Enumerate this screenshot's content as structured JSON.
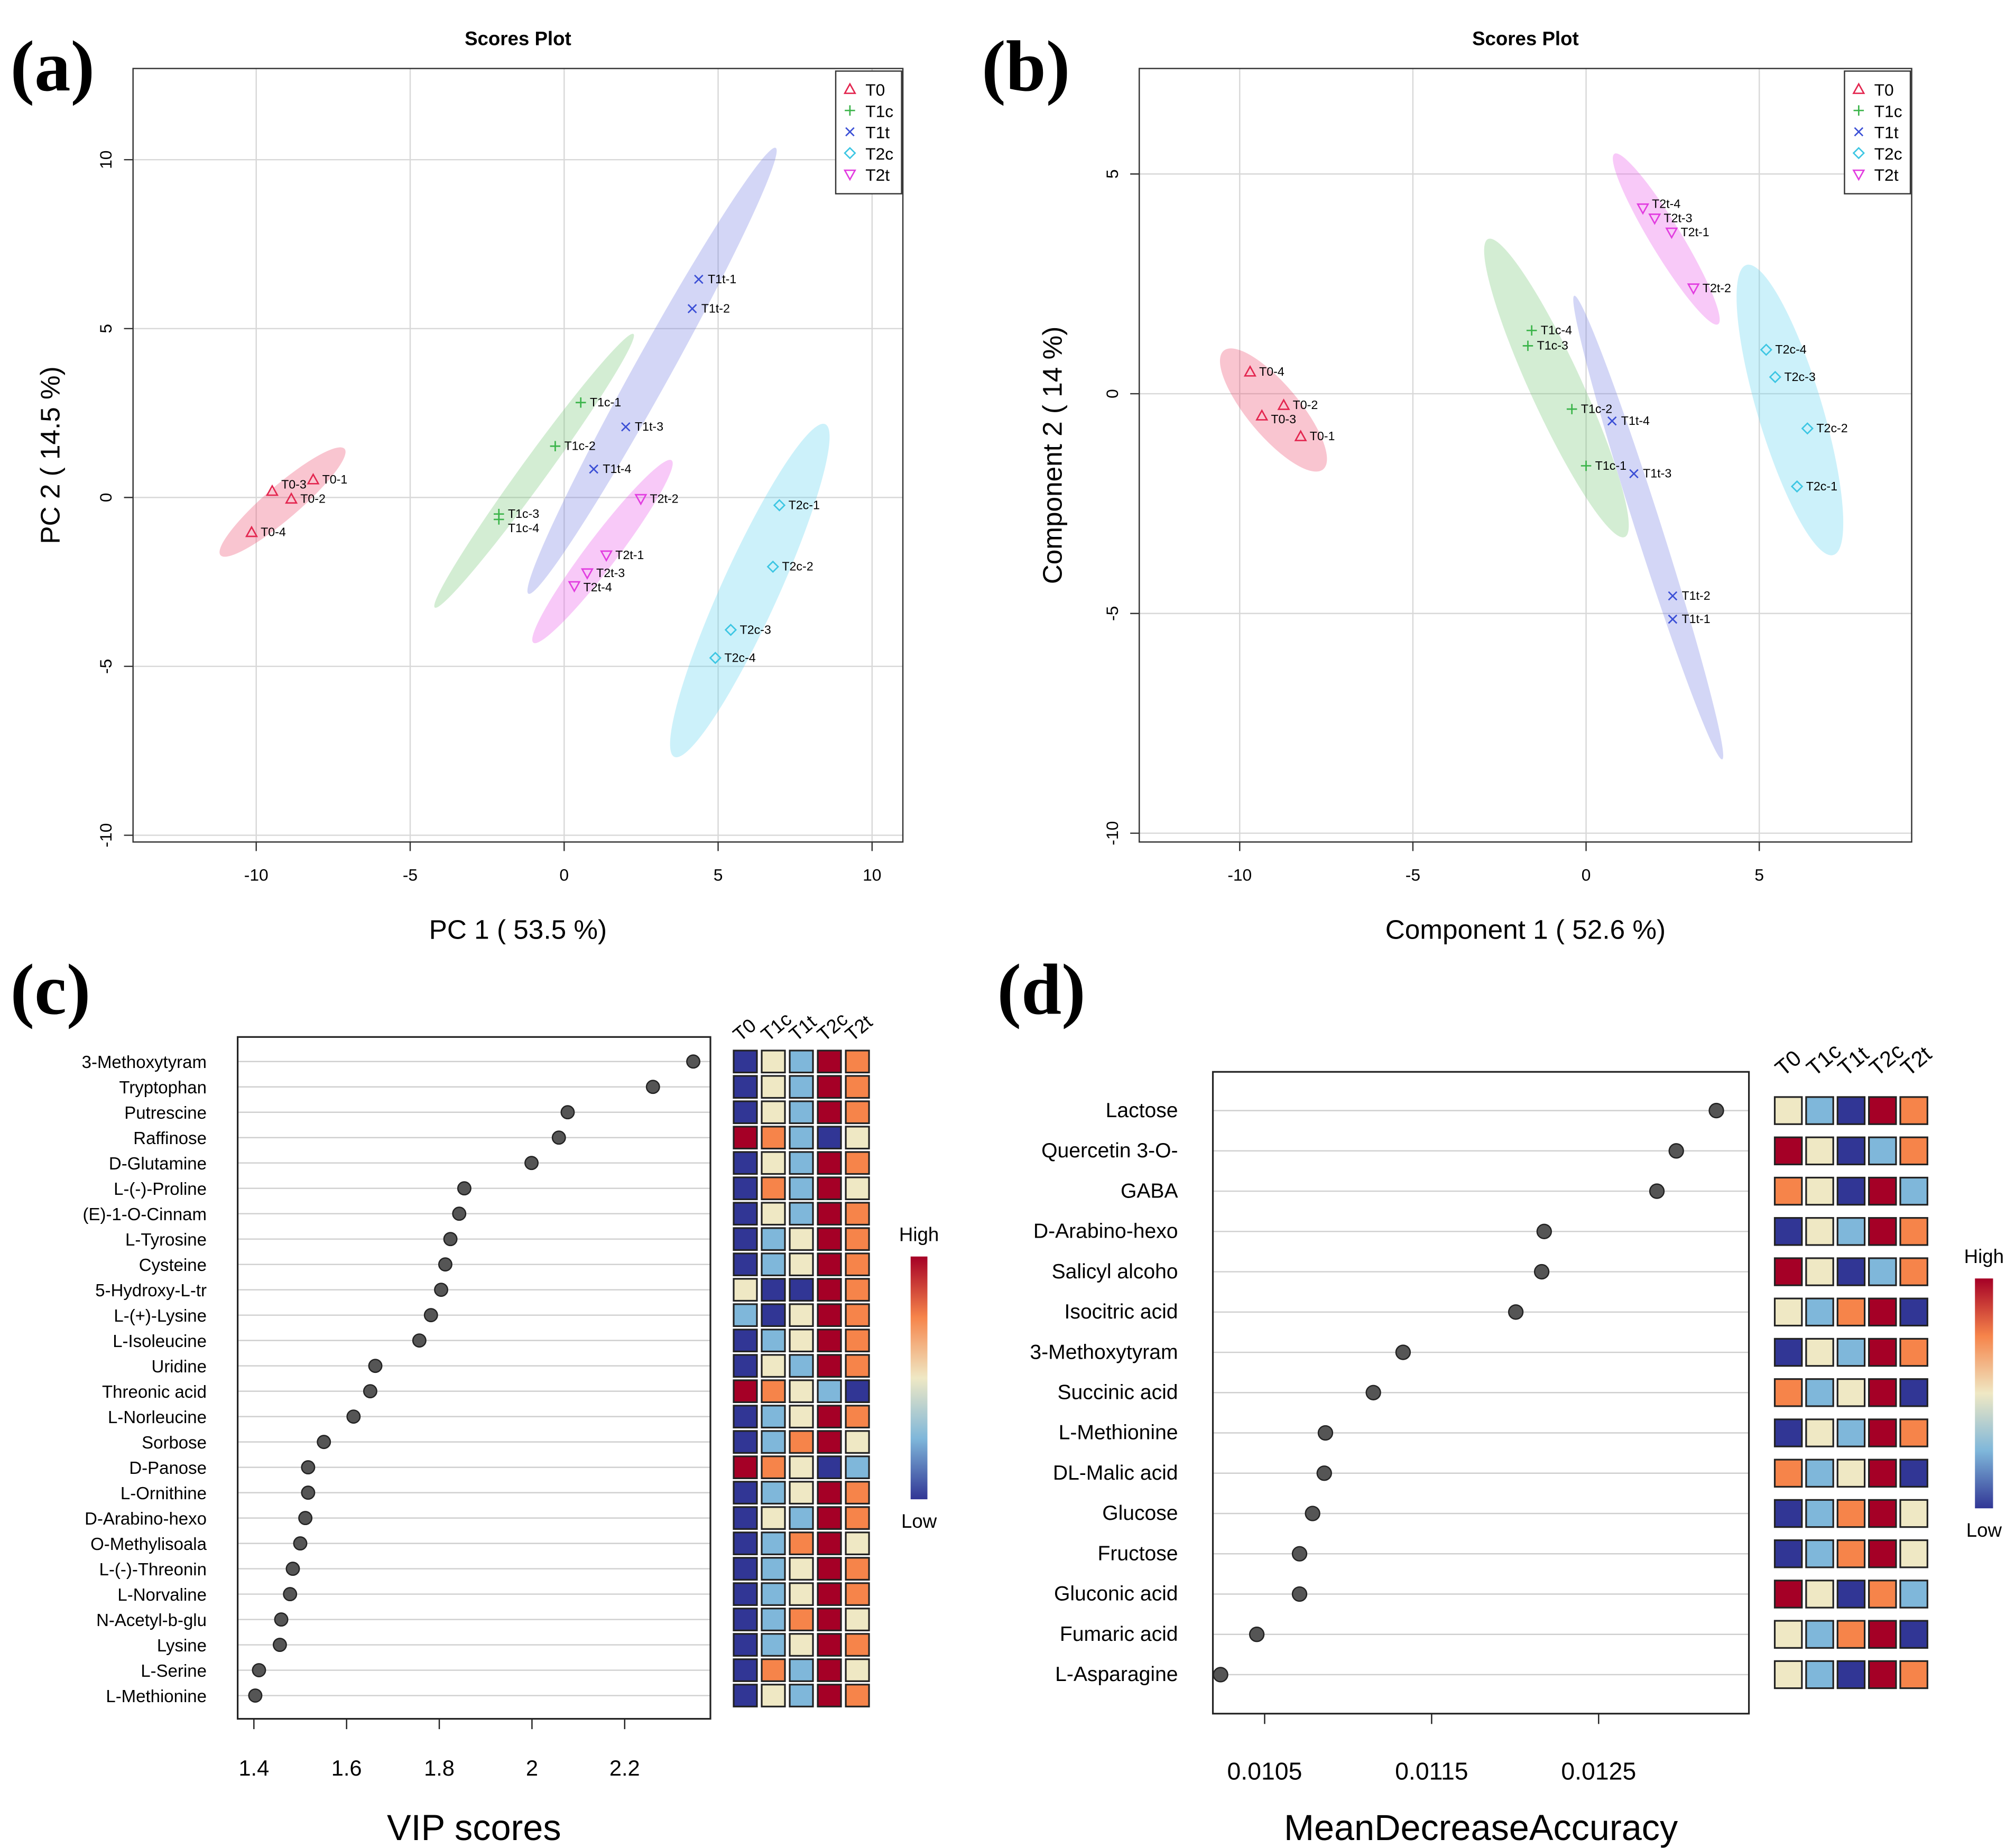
{
  "colors": {
    "T0": "#e3264f",
    "T1c": "#3bb44a",
    "T1t": "#3b4fd6",
    "T2c": "#3cc6e3",
    "T2t": "#e23de0",
    "heat": [
      "#313695",
      "#7fb7da",
      "#efe8c4",
      "#f6844a",
      "#a50026"
    ]
  },
  "chart_data": [
    {
      "panel": "(a)",
      "type": "scatter",
      "title": "Scores Plot",
      "xlabel": "PC 1 ( 53.5 %)",
      "ylabel": "PC 2 ( 14.5 %)",
      "xlim": [
        -14,
        11
      ],
      "ylim": [
        -10.2,
        12.7
      ],
      "xticks": [
        -10,
        -5,
        0,
        5,
        10
      ],
      "yticks": [
        -10,
        -5,
        0,
        5,
        10
      ],
      "grid": true,
      "legend": "top-right",
      "groups": [
        "T0",
        "T1c",
        "T1t",
        "T2c",
        "T2t"
      ],
      "points": [
        {
          "label": "T0-1",
          "group": "T0",
          "x": -8.15,
          "y": 0.53
        },
        {
          "label": "T0-2",
          "group": "T0",
          "x": -8.86,
          "y": -0.04
        },
        {
          "label": "T0-3",
          "group": "T0",
          "x": -9.48,
          "y": 0.19
        },
        {
          "label": "T0-4",
          "group": "T0",
          "x": -10.15,
          "y": -1.03
        },
        {
          "label": "T1c-1",
          "group": "T1c",
          "x": 0.54,
          "y": 2.81
        },
        {
          "label": "T1c-2",
          "group": "T1c",
          "x": -0.29,
          "y": 1.52
        },
        {
          "label": "T1c-3",
          "group": "T1c",
          "x": -2.12,
          "y": -0.49
        },
        {
          "label": "T1c-4",
          "group": "T1c",
          "x": -2.12,
          "y": -0.65
        },
        {
          "label": "T1t-1",
          "group": "T1t",
          "x": 4.37,
          "y": 6.46
        },
        {
          "label": "T1t-2",
          "group": "T1t",
          "x": 4.16,
          "y": 5.59
        },
        {
          "label": "T1t-3",
          "group": "T1t",
          "x": 2.0,
          "y": 2.09
        },
        {
          "label": "T1t-4",
          "group": "T1t",
          "x": 0.96,
          "y": 0.84
        },
        {
          "label": "T2c-1",
          "group": "T2c",
          "x": 6.99,
          "y": -0.23
        },
        {
          "label": "T2c-2",
          "group": "T2c",
          "x": 6.78,
          "y": -2.05
        },
        {
          "label": "T2c-3",
          "group": "T2c",
          "x": 5.41,
          "y": -3.92
        },
        {
          "label": "T2c-4",
          "group": "T2c",
          "x": 4.91,
          "y": -4.75
        },
        {
          "label": "T2t-1",
          "group": "T2t",
          "x": 1.37,
          "y": -1.71
        },
        {
          "label": "T2t-2",
          "group": "T2t",
          "x": 2.49,
          "y": -0.04
        },
        {
          "label": "T2t-3",
          "group": "T2t",
          "x": 0.75,
          "y": -2.24
        },
        {
          "label": "T2t-4",
          "group": "T2t",
          "x": 0.33,
          "y": -2.62
        }
      ],
      "ellipses": [
        {
          "group": "T0",
          "from": [
            -11.16,
            -1.71
          ],
          "to": [
            -7.13,
            1.44
          ]
        },
        {
          "group": "T1c",
          "from": [
            -4.2,
            -3.26
          ],
          "to": [
            2.25,
            4.84
          ]
        },
        {
          "group": "T1t",
          "from": [
            -1.16,
            -2.85
          ],
          "to": [
            6.87,
            10.35
          ]
        },
        {
          "group": "T2t",
          "from": [
            -1.0,
            -4.3
          ],
          "to": [
            3.49,
            1.1
          ]
        },
        {
          "group": "T2c",
          "from": [
            3.58,
            -7.68
          ],
          "to": [
            8.48,
            2.17
          ]
        }
      ]
    },
    {
      "panel": "(b)",
      "type": "scatter",
      "title": "Scores Plot",
      "xlabel": "Component 1 ( 52.6 %)",
      "ylabel": "Component 2 ( 14 %)",
      "xlim": [
        -12.9,
        9.4
      ],
      "ylim": [
        -10.2,
        7.4
      ],
      "xticks": [
        -10,
        -5,
        0,
        5
      ],
      "yticks": [
        -10,
        -5,
        0,
        5
      ],
      "grid": true,
      "legend": "top-right",
      "groups": [
        "T0",
        "T1c",
        "T1t",
        "T2c",
        "T2t"
      ],
      "points": [
        {
          "label": "T0-1",
          "group": "T0",
          "x": -8.24,
          "y": -0.97
        },
        {
          "label": "T0-2",
          "group": "T0",
          "x": -8.73,
          "y": -0.26
        },
        {
          "label": "T0-3",
          "group": "T0",
          "x": -9.36,
          "y": -0.5
        },
        {
          "label": "T0-4",
          "group": "T0",
          "x": -9.7,
          "y": 0.5
        },
        {
          "label": "T1c-1",
          "group": "T1c",
          "x": 0.0,
          "y": -1.64
        },
        {
          "label": "T1c-2",
          "group": "T1c",
          "x": -0.41,
          "y": -0.35
        },
        {
          "label": "T1c-3",
          "group": "T1c",
          "x": -1.68,
          "y": 1.09
        },
        {
          "label": "T1c-4",
          "group": "T1c",
          "x": -1.57,
          "y": 1.44
        },
        {
          "label": "T1t-1",
          "group": "T1t",
          "x": 2.5,
          "y": -5.13
        },
        {
          "label": "T1t-2",
          "group": "T1t",
          "x": 2.5,
          "y": -4.6
        },
        {
          "label": "T1t-3",
          "group": "T1t",
          "x": 1.38,
          "y": -1.82
        },
        {
          "label": "T1t-4",
          "group": "T1t",
          "x": 0.75,
          "y": -0.62
        },
        {
          "label": "T2c-1",
          "group": "T2c",
          "x": 6.09,
          "y": -2.11
        },
        {
          "label": "T2c-2",
          "group": "T2c",
          "x": 6.39,
          "y": -0.79
        },
        {
          "label": "T2c-3",
          "group": "T2c",
          "x": 5.46,
          "y": 0.38
        },
        {
          "label": "T2c-4",
          "group": "T2c",
          "x": 5.2,
          "y": 1.0
        },
        {
          "label": "T2t-1",
          "group": "T2t",
          "x": 2.47,
          "y": 3.67
        },
        {
          "label": "T2t-2",
          "group": "T2t",
          "x": 3.1,
          "y": 2.4
        },
        {
          "label": "T2t-3",
          "group": "T2t",
          "x": 1.98,
          "y": 3.99
        },
        {
          "label": "T2t-4",
          "group": "T2t",
          "x": 1.64,
          "y": 4.22
        }
      ],
      "ellipses": [
        {
          "group": "T0",
          "from": [
            -10.46,
            0.98
          ],
          "to": [
            -7.59,
            -1.72
          ]
        },
        {
          "group": "T1c",
          "from": [
            -2.83,
            3.52
          ],
          "to": [
            1.12,
            -3.26
          ]
        },
        {
          "group": "T1t",
          "from": [
            -0.34,
            2.23
          ],
          "to": [
            3.93,
            -8.32
          ]
        },
        {
          "group": "T2t",
          "from": [
            0.82,
            5.46
          ],
          "to": [
            3.81,
            1.58
          ]
        },
        {
          "group": "T2c",
          "from": [
            4.63,
            2.93
          ],
          "to": [
            7.14,
            -3.67
          ]
        }
      ]
    },
    {
      "panel": "(c)",
      "type": "scatter",
      "xlabel": "VIP scores",
      "xlim": [
        1.365,
        2.385
      ],
      "xticks": [
        1.4,
        1.6,
        1.8,
        2.0,
        2.2
      ],
      "heatmap_columns": [
        "T0",
        "T1c",
        "T1t",
        "T2c",
        "T2t"
      ],
      "colorbar": {
        "high": "High",
        "low": "Low"
      },
      "rows": [
        {
          "name": "3-Methoxytyram",
          "value": 2.348,
          "levels": [
            1,
            3,
            2,
            5,
            4
          ]
        },
        {
          "name": "Tryptophan",
          "value": 2.261,
          "levels": [
            1,
            3,
            2,
            5,
            4
          ]
        },
        {
          "name": "Putrescine",
          "value": 2.077,
          "levels": [
            1,
            3,
            2,
            5,
            4
          ]
        },
        {
          "name": "Raffinose",
          "value": 2.058,
          "levels": [
            5,
            4,
            2,
            1,
            3
          ]
        },
        {
          "name": "D-Glutamine",
          "value": 1.999,
          "levels": [
            1,
            3,
            2,
            5,
            4
          ]
        },
        {
          "name": "L-(-)-Proline",
          "value": 1.854,
          "levels": [
            1,
            4,
            2,
            5,
            3
          ]
        },
        {
          "name": "(E)-1-O-Cinnam",
          "value": 1.843,
          "levels": [
            1,
            3,
            2,
            5,
            4
          ]
        },
        {
          "name": "L-Tyrosine",
          "value": 1.824,
          "levels": [
            1,
            2,
            3,
            5,
            4
          ]
        },
        {
          "name": "Cysteine",
          "value": 1.813,
          "levels": [
            1,
            2,
            3,
            5,
            4
          ]
        },
        {
          "name": "5-Hydroxy-L-tr",
          "value": 1.804,
          "levels": [
            3,
            1,
            1,
            5,
            4
          ]
        },
        {
          "name": "L-(+)-Lysine",
          "value": 1.782,
          "levels": [
            2,
            1,
            3,
            5,
            4
          ]
        },
        {
          "name": "L-Isoleucine",
          "value": 1.757,
          "levels": [
            1,
            2,
            3,
            5,
            4
          ]
        },
        {
          "name": "Uridine",
          "value": 1.662,
          "levels": [
            1,
            3,
            2,
            5,
            4
          ]
        },
        {
          "name": "Threonic acid",
          "value": 1.651,
          "levels": [
            5,
            4,
            3,
            2,
            1
          ]
        },
        {
          "name": "L-Norleucine",
          "value": 1.615,
          "levels": [
            1,
            2,
            3,
            5,
            4
          ]
        },
        {
          "name": "Sorbose",
          "value": 1.551,
          "levels": [
            1,
            2,
            4,
            5,
            3
          ]
        },
        {
          "name": "D-Panose",
          "value": 1.517,
          "levels": [
            5,
            4,
            3,
            1,
            2
          ]
        },
        {
          "name": "L-Ornithine",
          "value": 1.517,
          "levels": [
            1,
            2,
            3,
            5,
            4
          ]
        },
        {
          "name": "D-Arabino-hexo",
          "value": 1.511,
          "levels": [
            1,
            3,
            2,
            5,
            4
          ]
        },
        {
          "name": "O-Methylisoala",
          "value": 1.5,
          "levels": [
            1,
            2,
            4,
            5,
            3
          ]
        },
        {
          "name": "L-(-)-Threonin",
          "value": 1.484,
          "levels": [
            1,
            2,
            3,
            5,
            4
          ]
        },
        {
          "name": "L-Norvaline",
          "value": 1.478,
          "levels": [
            1,
            2,
            3,
            5,
            4
          ]
        },
        {
          "name": "N-Acetyl-b-glu",
          "value": 1.459,
          "levels": [
            1,
            2,
            4,
            5,
            3
          ]
        },
        {
          "name": "Lysine",
          "value": 1.456,
          "levels": [
            1,
            2,
            3,
            5,
            4
          ]
        },
        {
          "name": "L-Serine",
          "value": 1.411,
          "levels": [
            1,
            4,
            2,
            5,
            3
          ]
        },
        {
          "name": "L-Methionine",
          "value": 1.403,
          "levels": [
            1,
            3,
            2,
            5,
            4
          ]
        }
      ]
    },
    {
      "panel": "(d)",
      "type": "scatter",
      "xlabel": "MeanDecreaseAccuracy",
      "xlim": [
        0.01019,
        0.0134
      ],
      "xticks": [
        0.0105,
        0.0115,
        0.0125
      ],
      "heatmap_columns": [
        "T0",
        "T1c",
        "T1t",
        "T2c",
        "T2t"
      ],
      "colorbar": {
        "high": "High",
        "low": "Low"
      },
      "rows": [
        {
          "name": "Lactose",
          "value": 0.013205,
          "levels": [
            3,
            2,
            1,
            5,
            4
          ]
        },
        {
          "name": "Quercetin 3-O-",
          "value": 0.012965,
          "levels": [
            5,
            3,
            1,
            2,
            4
          ]
        },
        {
          "name": "GABA",
          "value": 0.012849,
          "levels": [
            4,
            3,
            1,
            5,
            2
          ]
        },
        {
          "name": "D-Arabino-hexo",
          "value": 0.012174,
          "levels": [
            1,
            3,
            2,
            5,
            4
          ]
        },
        {
          "name": "Salicyl alcoho",
          "value": 0.012159,
          "levels": [
            5,
            3,
            1,
            2,
            4
          ]
        },
        {
          "name": "Isocitric acid",
          "value": 0.012004,
          "levels": [
            3,
            2,
            4,
            5,
            1
          ]
        },
        {
          "name": "3-Methoxytyram",
          "value": 0.011329,
          "levels": [
            1,
            3,
            2,
            5,
            4
          ]
        },
        {
          "name": "Succinic acid",
          "value": 0.011151,
          "levels": [
            4,
            2,
            3,
            5,
            1
          ]
        },
        {
          "name": "L-Methionine",
          "value": 0.010864,
          "levels": [
            1,
            3,
            2,
            5,
            4
          ]
        },
        {
          "name": "DL-Malic acid",
          "value": 0.010857,
          "levels": [
            4,
            2,
            3,
            5,
            1
          ]
        },
        {
          "name": "Glucose",
          "value": 0.010787,
          "levels": [
            1,
            2,
            4,
            5,
            3
          ]
        },
        {
          "name": "Fructose",
          "value": 0.010709,
          "levels": [
            1,
            2,
            4,
            5,
            3
          ]
        },
        {
          "name": "Gluconic acid",
          "value": 0.010709,
          "levels": [
            5,
            3,
            1,
            4,
            2
          ]
        },
        {
          "name": "Fumaric acid",
          "value": 0.010453,
          "levels": [
            3,
            2,
            4,
            5,
            1
          ]
        },
        {
          "name": "L-Asparagine",
          "value": 0.010236,
          "levels": [
            3,
            2,
            1,
            5,
            4
          ]
        }
      ]
    }
  ]
}
